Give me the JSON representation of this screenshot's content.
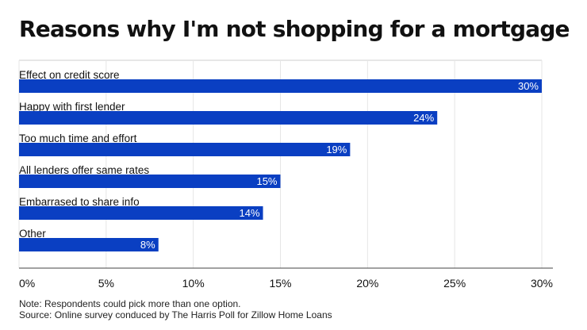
{
  "chart_data": {
    "type": "bar",
    "orientation": "horizontal",
    "title": "Reasons why I'm not shopping for a mortgage",
    "categories": [
      "Effect on credit score",
      "Happy with first lender",
      "Too much time and effort",
      "All lenders offer same rates",
      "Embarrased to share info",
      "Other"
    ],
    "values": [
      30,
      24,
      19,
      15,
      14,
      8
    ],
    "data_labels": [
      "30%",
      "24%",
      "19%",
      "15%",
      "14%",
      "8%"
    ],
    "xlim": [
      0,
      30
    ],
    "x_ticks": [
      0,
      5,
      10,
      15,
      20,
      25,
      30
    ],
    "x_tick_labels": [
      "0%",
      "5%",
      "10%",
      "15%",
      "20%",
      "25%",
      "30%"
    ],
    "bar_color": "#0a3fc2",
    "grid": "vertical",
    "legend": "none"
  },
  "notes": {
    "note": "Note: Respondents could pick more than one option.",
    "source": "Source: Online survey conduced by The Harris Poll for Zillow Home Loans"
  }
}
